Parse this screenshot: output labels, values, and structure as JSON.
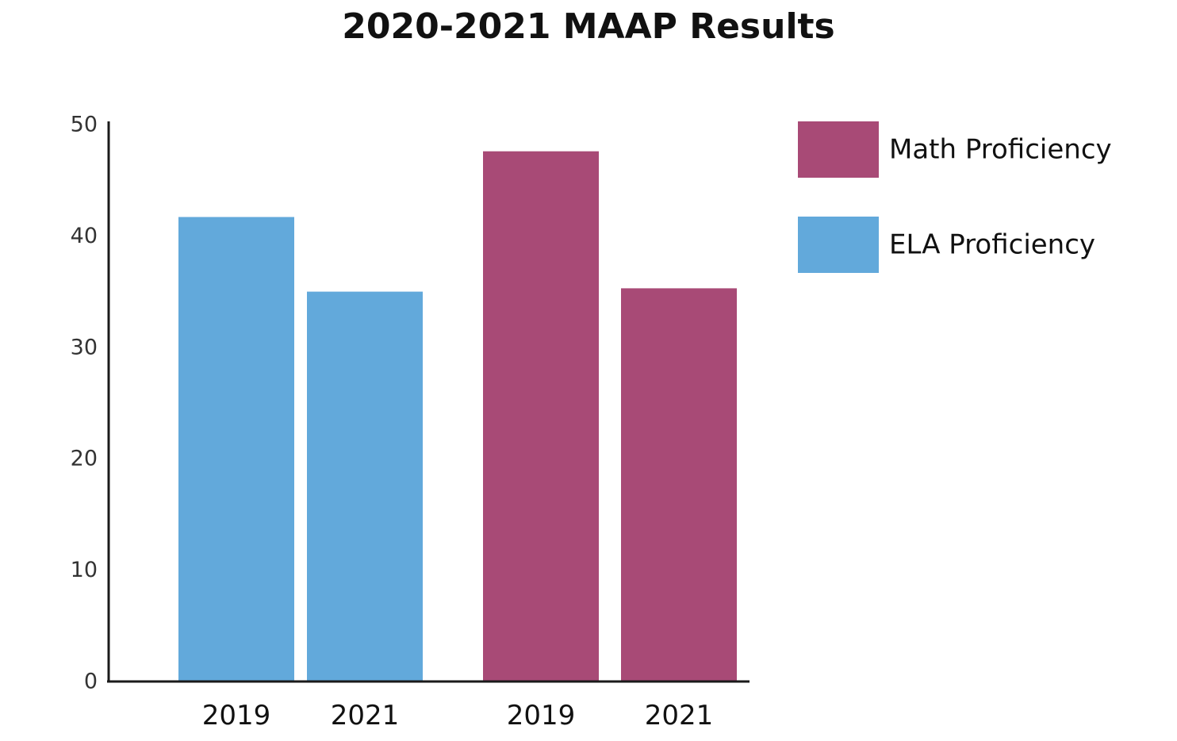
{
  "chart_data": {
    "type": "bar",
    "title": "2020-2021 MAAP Results",
    "xlabel": "",
    "ylabel": "",
    "ylim": [
      0,
      50
    ],
    "yticks": [
      0,
      10,
      20,
      30,
      40,
      50
    ],
    "grid": false,
    "legend_position": "top-right",
    "groups": [
      {
        "series": "ELA Proficiency",
        "bars": [
          {
            "category": "2019",
            "value": 41.7
          },
          {
            "category": "2021",
            "value": 35.0
          }
        ]
      },
      {
        "series": "Math Proficiency",
        "bars": [
          {
            "category": "2019",
            "value": 47.6
          },
          {
            "category": "2021",
            "value": 35.3
          }
        ]
      }
    ],
    "legend": [
      {
        "name": "Math Proficiency",
        "color": "#a84a76"
      },
      {
        "name": "ELA Proficiency",
        "color": "#62a9db"
      }
    ],
    "colors": {
      "ELA Proficiency": "#62a9db",
      "Math Proficiency": "#a84a76",
      "axis": "#1a1a1a"
    }
  }
}
